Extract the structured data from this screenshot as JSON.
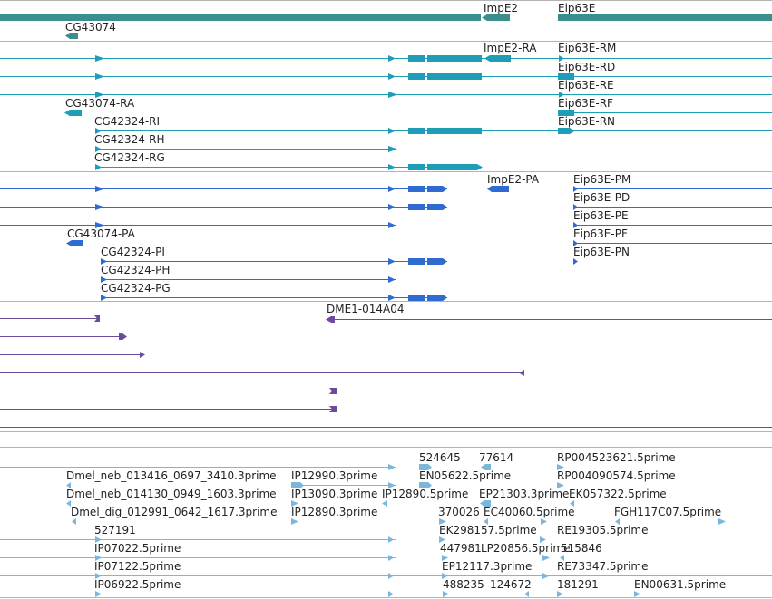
{
  "colors": {
    "gene": "#3a8f8c",
    "transcript": "#1e9db6",
    "protein": "#2f6bd0",
    "clone": "#6a4b9e",
    "est": "#7db6dc",
    "divider": "#b4b4b4"
  },
  "gene_track": {
    "labels": [
      "ImpE2",
      "Eip63E",
      "CG43074"
    ]
  },
  "transcript_track": {
    "labels": [
      "ImpE2-RA",
      "Eip63E-RM",
      "Eip63E-RD",
      "Eip63E-RE",
      "CG43074-RA",
      "Eip63E-RF",
      "CG42324-RI",
      "Eip63E-RN",
      "CG42324-RH",
      "CG42324-RG"
    ]
  },
  "protein_track": {
    "labels": [
      "ImpE2-PA",
      "Eip63E-PM",
      "Eip63E-PD",
      "Eip63E-PE",
      "CG43074-PA",
      "Eip63E-PF",
      "CG42324-PI",
      "Eip63E-PN",
      "CG42324-PH",
      "CG42324-PG"
    ]
  },
  "clone_track": {
    "labels": [
      "DME1-014A04"
    ]
  },
  "est_track": {
    "labels": [
      "524645",
      "77614",
      "RP004523621.5prime",
      "Dmel_neb_013416_0697_3410.3prime",
      "IP12990.3prime",
      "EN05622.5prime",
      "RP004090574.5prime",
      "Dmel_neb_014130_0949_1603.3prime",
      "IP13090.3prime",
      "IP12890.5prime",
      "EP21303.3prime",
      "EK057322.5prime",
      "Dmel_dig_012991_0642_1617.3prime",
      "IP12890.3prime",
      "370026",
      "EC40060.5prime",
      "FGH117C07.5prime",
      "527191",
      "EK298157.5prime",
      "RE19305.5prime",
      "IP07022.5prime",
      "447981",
      "LP20856.5prime",
      "515846",
      "IP07122.5prime",
      "EP12117.3prime",
      "RE73347.5prime",
      "IP06922.5prime",
      "488235",
      "124672",
      "181291",
      "EN00631.5prime"
    ]
  }
}
